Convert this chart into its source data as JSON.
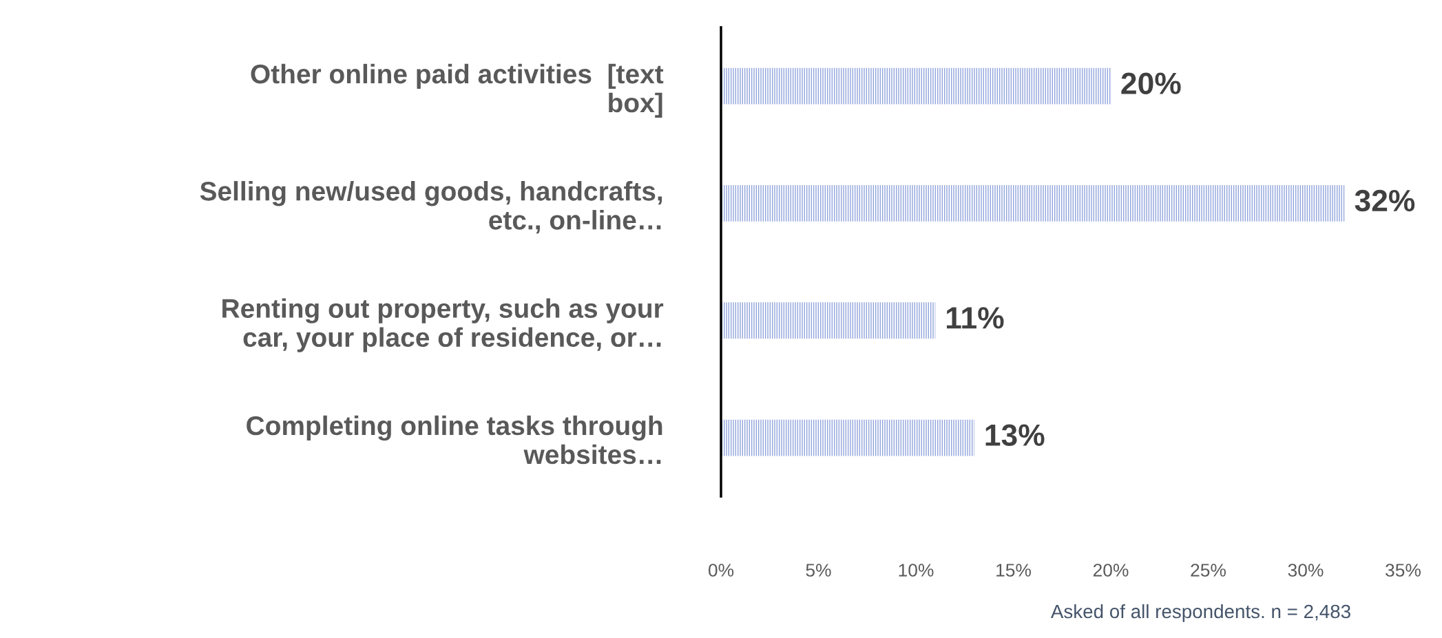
{
  "chart_data": {
    "type": "bar",
    "orientation": "horizontal",
    "categories": [
      "Other online paid activities  [text\nbox]",
      "Selling new/used goods, handcrafts,\netc., on-line…",
      "Renting out property, such as your\ncar, your place of residence, or…",
      "Completing online tasks through\nwebsites…"
    ],
    "values": [
      20,
      32,
      11,
      13
    ],
    "color": "#8fa3dc",
    "xlim": [
      0,
      35
    ],
    "xticks": [
      {
        "value": 0,
        "label": "0%"
      },
      {
        "value": 5,
        "label": "5%"
      },
      {
        "value": 10,
        "label": "10%"
      },
      {
        "value": 15,
        "label": "15%"
      },
      {
        "value": 20,
        "label": "20%"
      },
      {
        "value": 25,
        "label": "25%"
      },
      {
        "value": 30,
        "label": "30%"
      },
      {
        "value": 35,
        "label": "35%"
      }
    ],
    "value_labels": [
      "20%",
      "32%",
      "11%",
      "13%"
    ],
    "grid": false,
    "legend": false,
    "annotations": [
      "Asked of all respondents. n = 2,483"
    ]
  }
}
